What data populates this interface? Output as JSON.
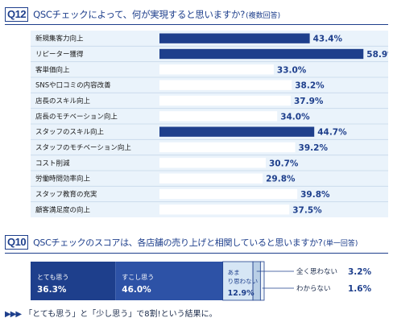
{
  "q12": {
    "badge": "Q12",
    "question": "QSCチェックによって、何が実現すると思いますか?",
    "note": "(複数回答)"
  },
  "q10": {
    "badge": "Q10",
    "question": "QSCチェックのスコアは、各店舗の売り上げと相関していると思いますか?",
    "note": "(単一回答)"
  },
  "footer": {
    "arrows": "▶▶▶",
    "text": "「とても思う」と「少し思う」で8割!という結果に。"
  },
  "colors": {
    "dark_bar": "#1e3f8c",
    "light_bar": "#ffffff",
    "panel_bg": "#eaf3fb",
    "mid_segment": "#2d52a6",
    "light_segment": "#d6e6f5"
  },
  "chart_data": [
    {
      "type": "bar",
      "orientation": "horizontal",
      "categories": [
        "新規集客力向上",
        "リピーター獲得",
        "客単価向上",
        "SNSや口コミの内容改善",
        "店長のスキル向上",
        "店長のモチベーション向上",
        "スタッフのスキル向上",
        "スタッフのモチベーション向上",
        "コスト削減",
        "労働時間効率向上",
        "スタッフ教育の充実",
        "顧客満足度の向上"
      ],
      "values": [
        43.4,
        58.9,
        33.0,
        38.2,
        37.9,
        34.0,
        44.7,
        39.2,
        30.7,
        29.8,
        39.8,
        37.5
      ],
      "value_labels": [
        "43.4%",
        "58.9%",
        "33.0%",
        "38.2%",
        "37.9%",
        "34.0%",
        "44.7%",
        "39.2%",
        "30.7%",
        "29.8%",
        "39.8%",
        "37.5%"
      ],
      "highlighted": [
        true,
        true,
        false,
        false,
        false,
        false,
        true,
        false,
        false,
        false,
        false,
        false
      ],
      "xlim": [
        0,
        70
      ]
    },
    {
      "type": "bar",
      "orientation": "stacked-horizontal",
      "segments": [
        {
          "label": "とても思う",
          "value": 36.3,
          "value_label": "36.3%"
        },
        {
          "label": "すこし思う",
          "value": 46.0,
          "value_label": "46.0%"
        },
        {
          "label": "あまり思わない",
          "value": 12.9,
          "value_label": "12.9%"
        },
        {
          "label": "全く思わない",
          "value": 3.2,
          "value_label": "3.2%"
        },
        {
          "label": "わからない",
          "value": 1.6,
          "value_label": "1.6%"
        }
      ]
    }
  ]
}
